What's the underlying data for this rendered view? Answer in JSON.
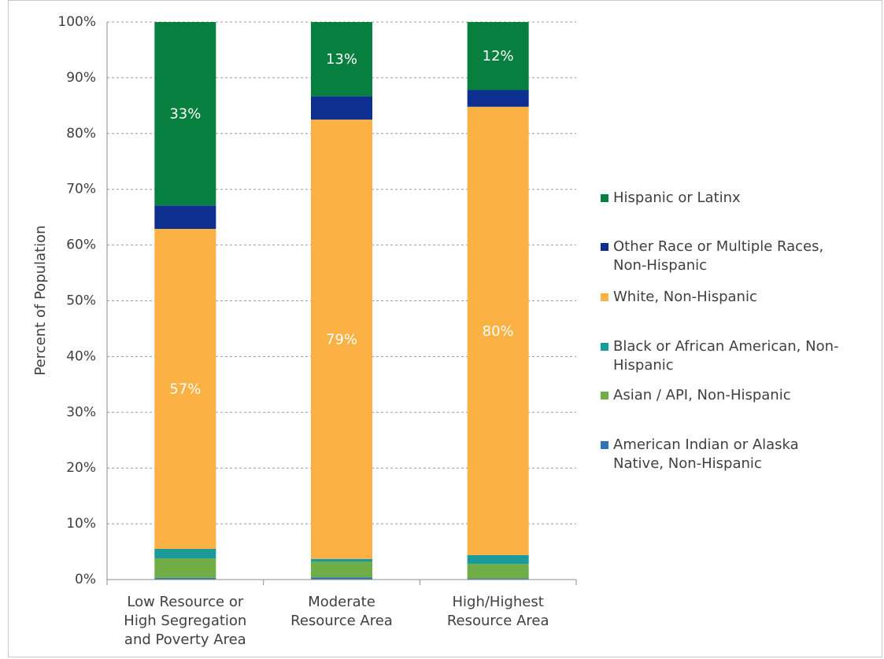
{
  "chart_data": {
    "type": "bar",
    "stacked": true,
    "ylabel": "Percent of Population",
    "ylim": [
      0,
      100
    ],
    "y_ticks": [
      "0%",
      "10%",
      "20%",
      "30%",
      "40%",
      "50%",
      "60%",
      "70%",
      "80%",
      "90%",
      "100%"
    ],
    "categories": [
      [
        "Low Resource or",
        "High Segregation",
        "and Poverty Area"
      ],
      [
        "Moderate",
        "Resource Area"
      ],
      [
        "High/Highest",
        "Resource Area"
      ]
    ],
    "series": [
      {
        "name": "American Indian or Alaska Native, Non-Hispanic",
        "legend_lines": [
          "American Indian or Alaska",
          "Native, Non-Hispanic"
        ],
        "color": "#2e75b6",
        "values": [
          0.3,
          0.4,
          0.2
        ],
        "labels": [
          "",
          "",
          ""
        ]
      },
      {
        "name": "Asian / API, Non-Hispanic",
        "legend_lines": [
          "Asian / API, Non-Hispanic"
        ],
        "color": "#70ad47",
        "values": [
          3.5,
          2.8,
          2.6
        ],
        "labels": [
          "",
          "",
          ""
        ]
      },
      {
        "name": "Black or African American, Non-Hispanic",
        "legend_lines": [
          "Black or African American, Non-",
          "Hispanic"
        ],
        "color": "#1a9a9a",
        "values": [
          1.7,
          0.5,
          1.6
        ],
        "labels": [
          "",
          "",
          ""
        ]
      },
      {
        "name": "White, Non-Hispanic",
        "legend_lines": [
          "White, Non-Hispanic"
        ],
        "color": "#fbb144",
        "values": [
          57.4,
          78.8,
          80.4
        ],
        "labels": [
          "57%",
          "79%",
          "80%"
        ]
      },
      {
        "name": "Other Race or Multiple Races, Non-Hispanic",
        "legend_lines": [
          "Other Race or Multiple Races,",
          "Non-Hispanic"
        ],
        "color": "#0d2f8f",
        "values": [
          4.2,
          4.2,
          3.0
        ],
        "labels": [
          "",
          "",
          ""
        ]
      },
      {
        "name": "Hispanic or Latinx",
        "legend_lines": [
          "Hispanic or Latinx"
        ],
        "color": "#07803f",
        "values": [
          32.9,
          13.3,
          12.2
        ],
        "labels": [
          "33%",
          "13%",
          "12%"
        ]
      }
    ],
    "grid": true,
    "legend_position": "right"
  }
}
